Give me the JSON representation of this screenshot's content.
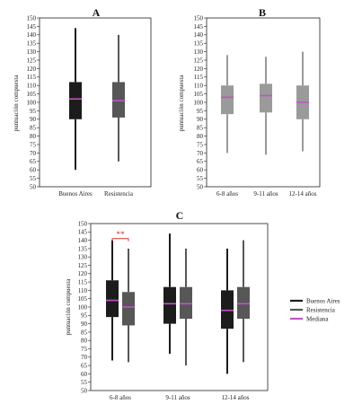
{
  "colors": {
    "buenos_aires": "#1c1c1c",
    "resistencia": "#575757",
    "age_group": "#9a9a9a",
    "median": "#c054c8",
    "significance": "#d03030"
  },
  "chart_data": [
    {
      "id": "A",
      "type": "boxplot",
      "title": "A",
      "xlabel": "",
      "ylabel": "puntuación compuesta",
      "ylim": [
        50,
        150
      ],
      "yticks": [
        50,
        55,
        60,
        65,
        70,
        75,
        80,
        85,
        90,
        95,
        100,
        105,
        110,
        115,
        120,
        125,
        130,
        135,
        140,
        145,
        150
      ],
      "categories": [
        "Buenos Aires",
        "Resistencia"
      ],
      "boxes": [
        {
          "category": "Buenos Aires",
          "min": 60,
          "q1": 90,
          "median": 102,
          "q3": 112,
          "max": 144,
          "color_key": "buenos_aires"
        },
        {
          "category": "Resistencia",
          "min": 65,
          "q1": 91,
          "median": 101,
          "q3": 112,
          "max": 140,
          "color_key": "resistencia"
        }
      ]
    },
    {
      "id": "B",
      "type": "boxplot",
      "title": "B",
      "xlabel": "",
      "ylabel": "puntuación compuesta",
      "ylim": [
        50,
        150
      ],
      "yticks": [
        50,
        55,
        60,
        65,
        70,
        75,
        80,
        85,
        90,
        95,
        100,
        105,
        110,
        115,
        120,
        125,
        130,
        135,
        140,
        145,
        150
      ],
      "categories": [
        "6-8 años",
        "9-11 años",
        "12-14 años"
      ],
      "boxes": [
        {
          "category": "6-8 años",
          "min": 70,
          "q1": 93,
          "median": 103,
          "q3": 110,
          "max": 128,
          "color_key": "age_group"
        },
        {
          "category": "9-11 años",
          "min": 69,
          "q1": 94,
          "median": 104,
          "q3": 111,
          "max": 127,
          "color_key": "age_group"
        },
        {
          "category": "12-14 años",
          "min": 71,
          "q1": 90,
          "median": 100,
          "q3": 110,
          "max": 130,
          "color_key": "age_group"
        }
      ]
    },
    {
      "id": "C",
      "type": "boxplot",
      "title": "C",
      "xlabel": "",
      "ylabel": "puntuación compuesta",
      "ylim": [
        50,
        150
      ],
      "yticks": [
        50,
        55,
        60,
        65,
        70,
        75,
        80,
        85,
        90,
        95,
        100,
        105,
        110,
        115,
        120,
        125,
        130,
        135,
        140,
        145,
        150
      ],
      "categories": [
        "6-8 años",
        "9-11 años",
        "12-14 años"
      ],
      "series": [
        {
          "name": "Buenos Aires",
          "color_key": "buenos_aires",
          "boxes": [
            {
              "min": 68,
              "q1": 94,
              "median": 104,
              "q3": 116,
              "max": 140
            },
            {
              "min": 72,
              "q1": 90,
              "median": 102,
              "q3": 112,
              "max": 144
            },
            {
              "min": 60,
              "q1": 87,
              "median": 98,
              "q3": 110,
              "max": 135
            }
          ]
        },
        {
          "name": "Resistencia",
          "color_key": "resistencia",
          "boxes": [
            {
              "min": 67,
              "q1": 89,
              "median": 100,
              "q3": 109,
              "max": 135
            },
            {
              "min": 65,
              "q1": 93,
              "median": 102,
              "q3": 112,
              "max": 135
            },
            {
              "min": 67,
              "q1": 93,
              "median": 102,
              "q3": 112,
              "max": 140
            }
          ]
        }
      ],
      "annotations": [
        {
          "text": "**",
          "category": "6-8 años",
          "bracket_y": 141
        }
      ],
      "legend": {
        "placement": "right",
        "entries": [
          {
            "label": "Buenos Aires",
            "color_key": "buenos_aires"
          },
          {
            "label": "Resistencia",
            "color_key": "resistencia"
          },
          {
            "label": "Mediana",
            "color_key": "median"
          }
        ]
      }
    }
  ]
}
